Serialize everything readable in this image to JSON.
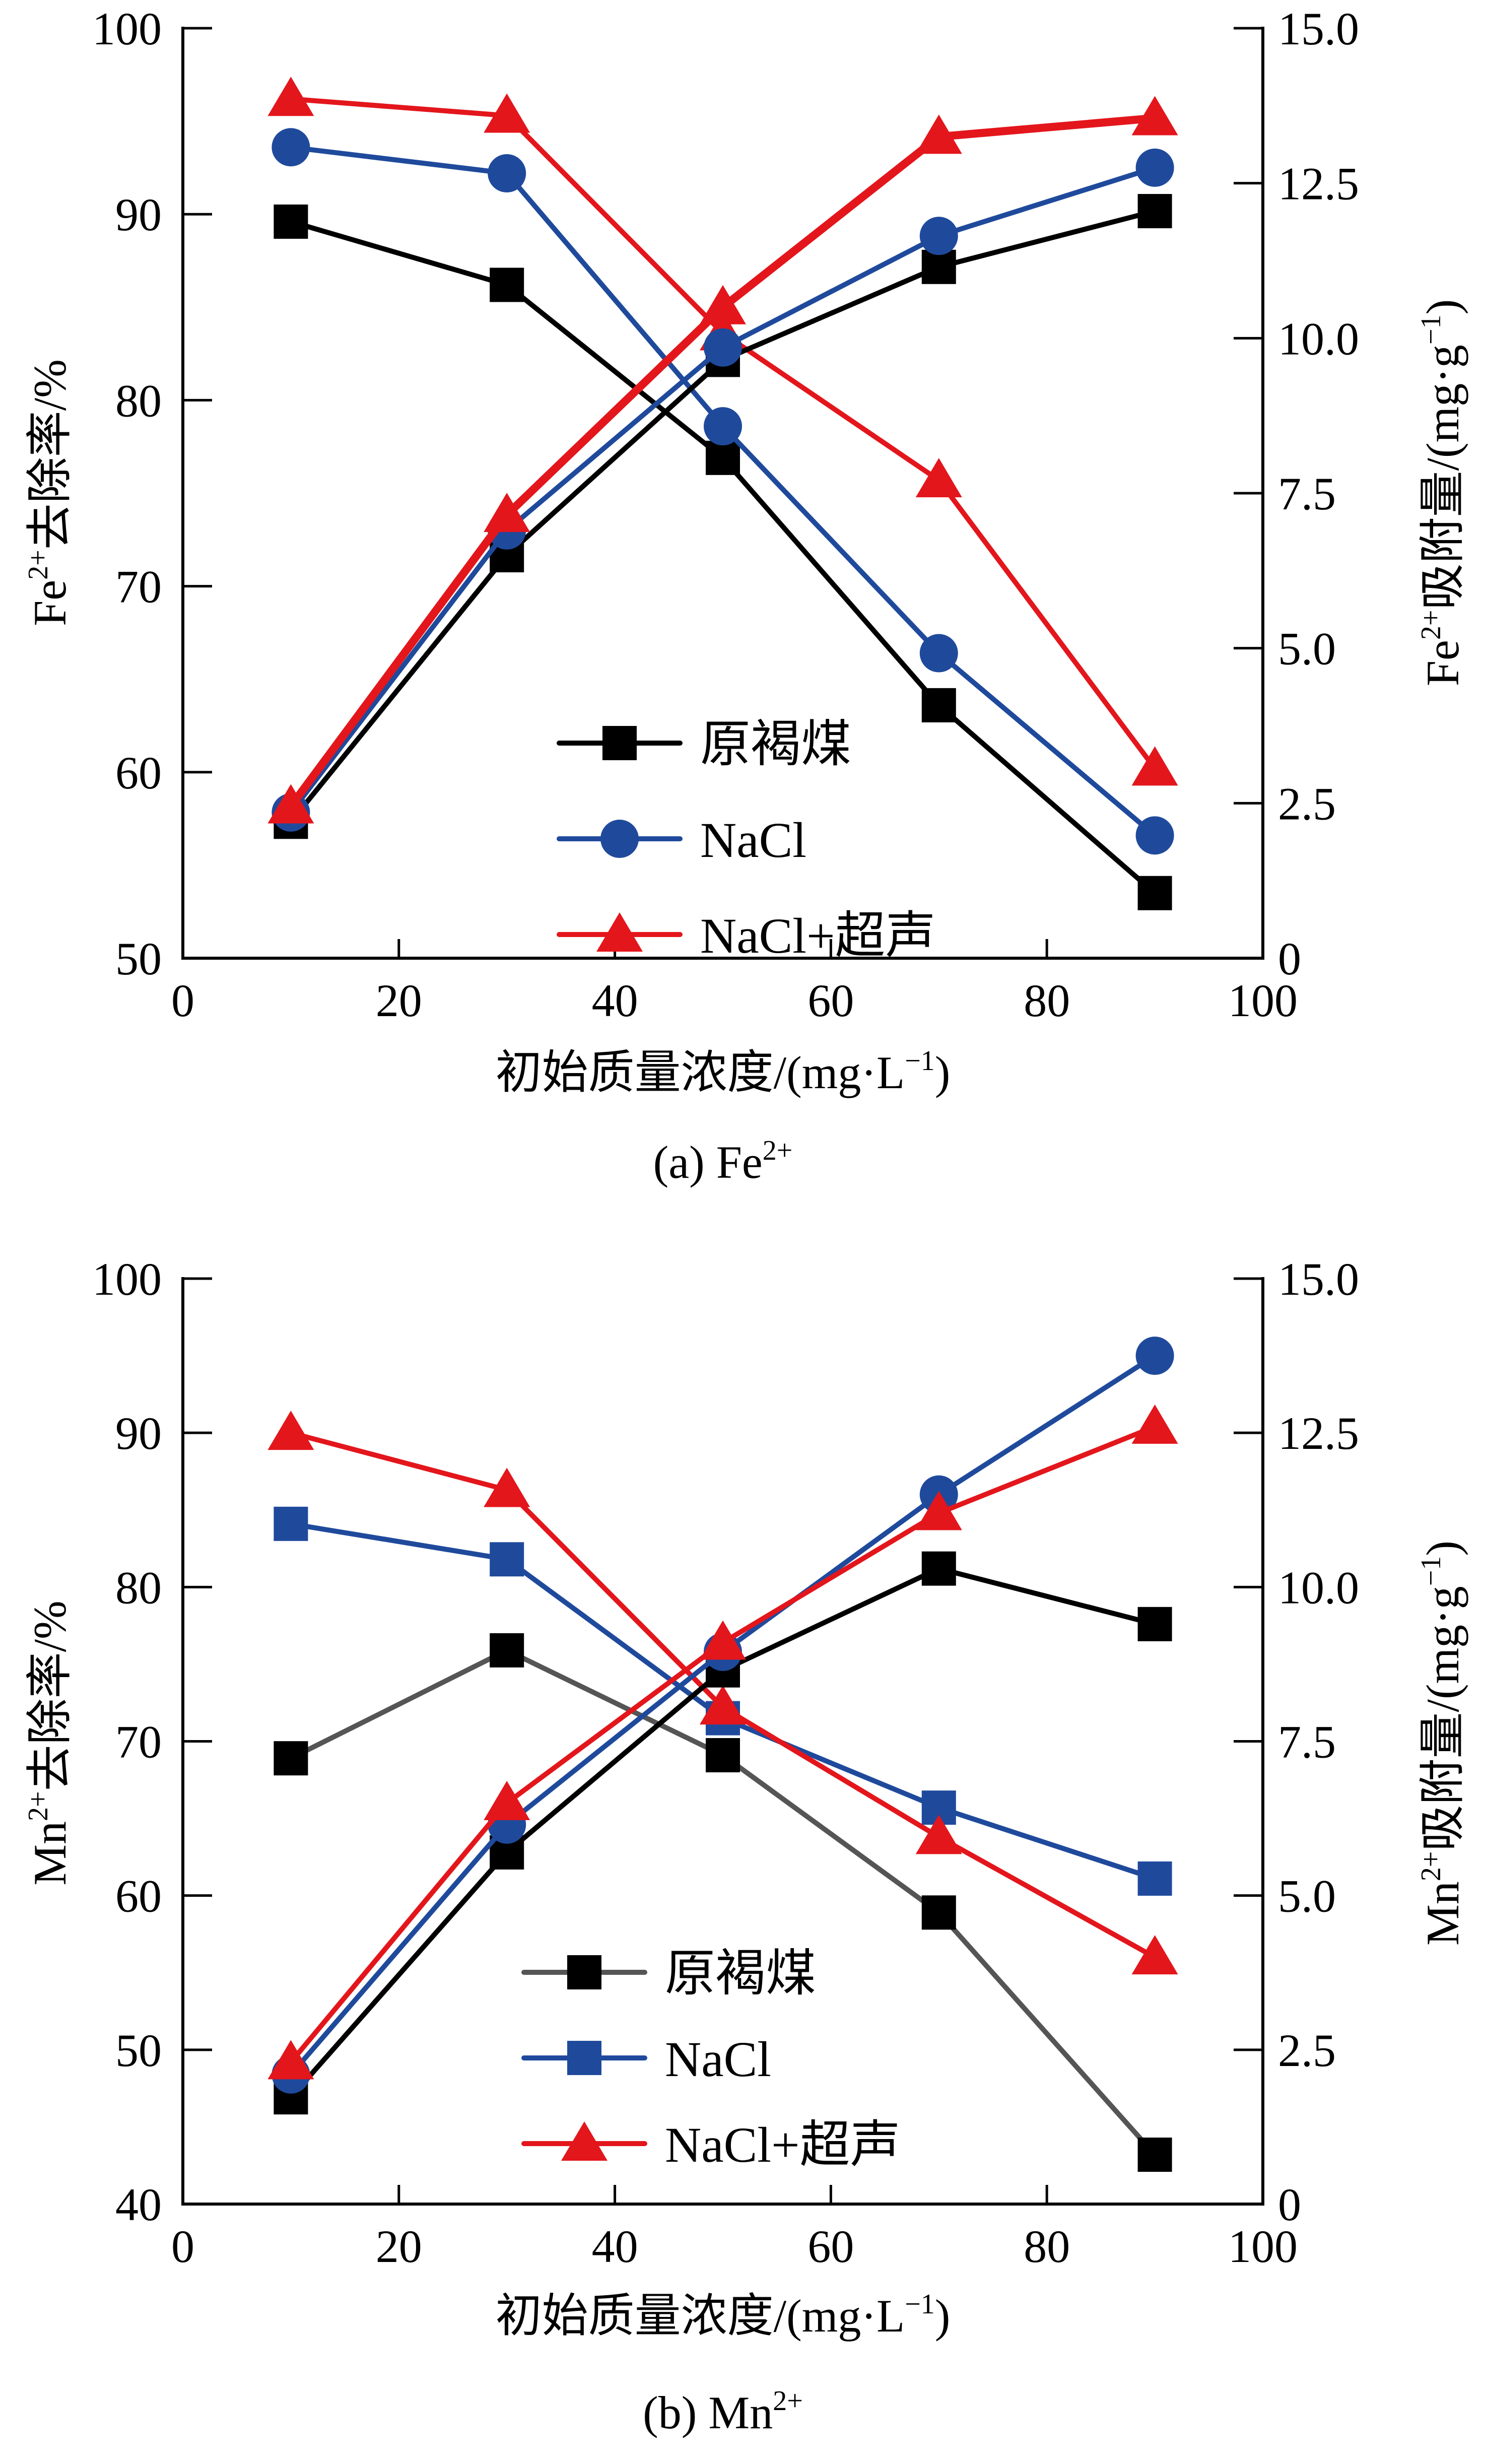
{
  "colors": {
    "black": "#000000",
    "gray": "#555555",
    "blue": "#1f4a9c",
    "red": "#e3161c"
  },
  "chart_data": [
    {
      "type": "line",
      "panel": "a",
      "caption": {
        "prefix": "(a) Fe",
        "sup": "2+"
      },
      "xlabel": {
        "main": "初始质量浓度/(mg",
        "dot": "·",
        "unit": "L",
        "sup": "−1",
        "close": ")"
      },
      "ylabel_left": {
        "ion": "Fe",
        "sup": "2+",
        "rest": "去除率/%"
      },
      "ylabel_right": {
        "ion": "Fe",
        "sup": "2+",
        "rest": "吸附量/(mg·g",
        "sup2": "−1",
        "close": ")"
      },
      "xlim": [
        0,
        100
      ],
      "ylim_left": [
        50,
        100
      ],
      "ylim_right": [
        0,
        15
      ],
      "x_ticks": [
        "0",
        "20",
        "40",
        "60",
        "80",
        "100"
      ],
      "y_left_ticks": [
        "50",
        "60",
        "70",
        "80",
        "90",
        "100"
      ],
      "y_right_ticks": [
        "0",
        "2.5",
        "5.0",
        "7.5",
        "10.0",
        "12.5",
        "15.0"
      ],
      "x": [
        10,
        30,
        50,
        70,
        90
      ],
      "legend": [
        {
          "name": "原褐煤",
          "marker": "square",
          "line_color": "black",
          "marker_color": "black"
        },
        {
          "name": "NaCl",
          "marker": "circle",
          "line_color": "blue",
          "marker_color": "blue"
        },
        {
          "name": "NaCl+超声",
          "marker": "triangle",
          "line_color": "red",
          "marker_color": "red"
        }
      ],
      "series": [
        {
          "name": "原褐煤",
          "axis": "left",
          "quantity": "removal",
          "marker": "square",
          "line_color": "black",
          "marker_color": "black",
          "values": [
            89.6,
            86.2,
            76.9,
            63.6,
            53.5
          ]
        },
        {
          "name": "NaCl",
          "axis": "left",
          "quantity": "removal",
          "marker": "circle",
          "line_color": "blue",
          "marker_color": "blue",
          "values": [
            93.6,
            92.2,
            78.6,
            66.4,
            56.6
          ]
        },
        {
          "name": "NaCl+超声",
          "axis": "left",
          "quantity": "removal",
          "marker": "triangle",
          "line_color": "red",
          "marker_color": "red",
          "values": [
            96.2,
            95.3,
            83.6,
            75.7,
            60.2
          ]
        },
        {
          "name": "原褐煤",
          "axis": "right",
          "quantity": "adsorption",
          "marker": "square",
          "line_color": "black",
          "marker_color": "black",
          "values": [
            2.2,
            6.5,
            9.65,
            11.15,
            12.05
          ]
        },
        {
          "name": "NaCl",
          "axis": "right",
          "quantity": "adsorption",
          "marker": "circle",
          "line_color": "blue",
          "marker_color": "blue",
          "values": [
            2.35,
            6.9,
            9.85,
            11.65,
            12.75
          ]
        },
        {
          "name": "NaCl+超声",
          "axis": "right",
          "quantity": "adsorption",
          "marker": "triangle",
          "line_color": "red",
          "marker_color": "red",
          "thick": true,
          "values": [
            2.45,
            7.15,
            10.5,
            13.25,
            13.55
          ]
        }
      ]
    },
    {
      "type": "line",
      "panel": "b",
      "caption": {
        "prefix": "(b) Mn",
        "sup": "2+"
      },
      "xlabel": {
        "main": "初始质量浓度/(mg",
        "dot": "·",
        "unit": "L",
        "sup": "−1",
        "close": ")"
      },
      "ylabel_left": {
        "ion": "Mn",
        "sup": "2+",
        "rest": "去除率/%"
      },
      "ylabel_right": {
        "ion": "Mn",
        "sup": "2+",
        "rest": "吸附量/(mg·g",
        "sup2": "−1",
        "close": ")"
      },
      "xlim": [
        0,
        100
      ],
      "ylim_left": [
        40,
        100
      ],
      "ylim_right": [
        0,
        15
      ],
      "x_ticks": [
        "0",
        "20",
        "40",
        "60",
        "80",
        "100"
      ],
      "y_left_ticks": [
        "40",
        "50",
        "60",
        "70",
        "80",
        "90",
        "100"
      ],
      "y_right_ticks": [
        "0",
        "2.5",
        "5.0",
        "7.5",
        "10.0",
        "12.5",
        "15.0"
      ],
      "x": [
        10,
        30,
        50,
        70,
        90
      ],
      "legend": [
        {
          "name": "原褐煤",
          "marker": "square",
          "line_color": "gray",
          "marker_color": "black"
        },
        {
          "name": "NaCl",
          "marker": "square",
          "line_color": "blue",
          "marker_color": "blue"
        },
        {
          "name": "NaCl+超声",
          "marker": "triangle",
          "line_color": "red",
          "marker_color": "red"
        }
      ],
      "series": [
        {
          "name": "原褐煤",
          "axis": "left",
          "quantity": "removal",
          "marker": "square",
          "line_color": "gray",
          "marker_color": "black",
          "values": [
            68.9,
            75.9,
            69.1,
            58.9,
            43.2
          ]
        },
        {
          "name": "NaCl",
          "axis": "left",
          "quantity": "removal",
          "marker": "square",
          "line_color": "blue",
          "marker_color": "blue",
          "values": [
            84.1,
            81.8,
            71.5,
            65.7,
            61.1
          ]
        },
        {
          "name": "NaCl+超声",
          "axis": "left",
          "quantity": "removal",
          "marker": "triangle",
          "line_color": "red",
          "marker_color": "red",
          "values": [
            90.0,
            86.3,
            72.2,
            63.8,
            56.0
          ]
        },
        {
          "name": "原褐煤",
          "axis": "right",
          "quantity": "adsorption",
          "marker": "square",
          "line_color": "black",
          "marker_color": "black",
          "values": [
            1.73,
            5.7,
            8.65,
            10.3,
            9.4
          ]
        },
        {
          "name": "NaCl",
          "axis": "right",
          "quantity": "adsorption",
          "marker": "circle",
          "line_color": "blue",
          "marker_color": "blue",
          "values": [
            2.1,
            6.15,
            8.95,
            11.5,
            13.75
          ]
        },
        {
          "name": "NaCl+超声",
          "axis": "right",
          "quantity": "adsorption",
          "marker": "triangle",
          "line_color": "red",
          "marker_color": "red",
          "values": [
            2.3,
            6.5,
            9.1,
            11.2,
            12.6
          ]
        }
      ]
    }
  ]
}
